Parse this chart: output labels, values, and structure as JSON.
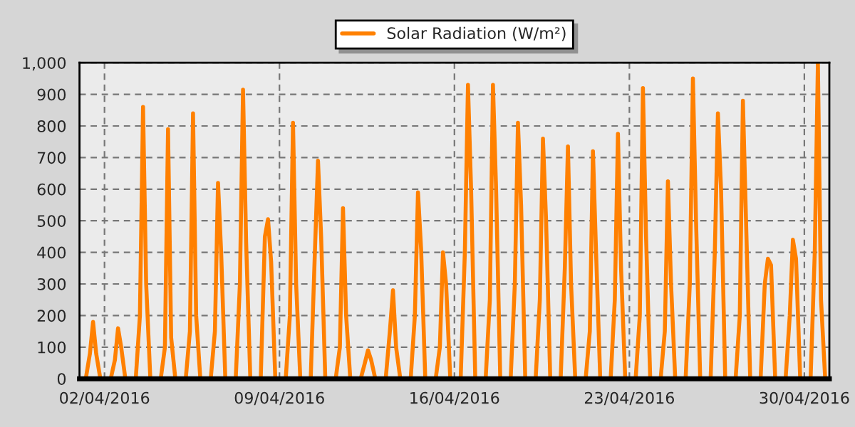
{
  "chart_data": {
    "type": "line",
    "legend": "top",
    "grid": true,
    "line_style": "solid",
    "marker": "none",
    "xlim": [
      "2016-04-01",
      "2016-05-01"
    ],
    "xticks": [
      {
        "value": "2016-04-02",
        "label": "02/04/2016"
      },
      {
        "value": "2016-04-09",
        "label": "09/04/2016"
      },
      {
        "value": "2016-04-16",
        "label": "16/04/2016"
      },
      {
        "value": "2016-04-23",
        "label": "23/04/2016"
      },
      {
        "value": "2016-04-30",
        "label": "30/04/2016"
      }
    ],
    "ylim": [
      0,
      1000
    ],
    "yticks": [
      0,
      100,
      200,
      300,
      400,
      500,
      600,
      700,
      800,
      900,
      {
        "value": 1000,
        "label": "1,000"
      }
    ],
    "series": [
      {
        "name": "Solar Radiation (W/m²)",
        "color": "#ff8000",
        "x": [
          "2016-04-01T06:00",
          "2016-04-01T10:00",
          "2016-04-01T13:00",
          "2016-04-01T16:00",
          "2016-04-01T20:00",
          "2016-04-02T06:00",
          "2016-04-02T10:00",
          "2016-04-02T13:00",
          "2016-04-02T16:00",
          "2016-04-02T20:00",
          "2016-04-03T06:00",
          "2016-04-03T10:00",
          "2016-04-03T13:00",
          "2016-04-03T16:00",
          "2016-04-03T20:00",
          "2016-04-04T06:00",
          "2016-04-04T10:00",
          "2016-04-04T13:00",
          "2016-04-04T16:00",
          "2016-04-04T20:00",
          "2016-04-05T06:00",
          "2016-04-05T10:00",
          "2016-04-05T13:00",
          "2016-04-05T16:00",
          "2016-04-05T20:00",
          "2016-04-06T06:00",
          "2016-04-06T10:00",
          "2016-04-06T13:00",
          "2016-04-06T16:00",
          "2016-04-06T20:00",
          "2016-04-07T06:00",
          "2016-04-07T10:00",
          "2016-04-07T13:00",
          "2016-04-07T16:00",
          "2016-04-07T20:00",
          "2016-04-08T06:00",
          "2016-04-08T10:00",
          "2016-04-08T13:00",
          "2016-04-08T16:00",
          "2016-04-08T20:00",
          "2016-04-09T06:00",
          "2016-04-09T10:00",
          "2016-04-09T13:00",
          "2016-04-09T16:00",
          "2016-04-09T20:00",
          "2016-04-10T06:00",
          "2016-04-10T10:00",
          "2016-04-10T13:00",
          "2016-04-10T16:00",
          "2016-04-10T20:00",
          "2016-04-11T06:00",
          "2016-04-11T10:00",
          "2016-04-11T13:00",
          "2016-04-11T16:00",
          "2016-04-11T20:00",
          "2016-04-12T06:00",
          "2016-04-12T10:00",
          "2016-04-12T13:00",
          "2016-04-12T16:00",
          "2016-04-12T20:00",
          "2016-04-13T06:00",
          "2016-04-13T10:00",
          "2016-04-13T13:00",
          "2016-04-13T16:00",
          "2016-04-13T20:00",
          "2016-04-14T06:00",
          "2016-04-14T10:00",
          "2016-04-14T13:00",
          "2016-04-14T16:00",
          "2016-04-14T20:00",
          "2016-04-15T06:00",
          "2016-04-15T10:00",
          "2016-04-15T13:00",
          "2016-04-15T16:00",
          "2016-04-15T20:00",
          "2016-04-16T06:00",
          "2016-04-16T10:00",
          "2016-04-16T13:00",
          "2016-04-16T16:00",
          "2016-04-16T20:00",
          "2016-04-17T06:00",
          "2016-04-17T10:00",
          "2016-04-17T13:00",
          "2016-04-17T16:00",
          "2016-04-17T20:00",
          "2016-04-18T06:00",
          "2016-04-18T10:00",
          "2016-04-18T13:00",
          "2016-04-18T16:00",
          "2016-04-18T20:00",
          "2016-04-19T06:00",
          "2016-04-19T10:00",
          "2016-04-19T13:00",
          "2016-04-19T16:00",
          "2016-04-19T20:00",
          "2016-04-20T06:00",
          "2016-04-20T10:00",
          "2016-04-20T13:00",
          "2016-04-20T16:00",
          "2016-04-20T20:00",
          "2016-04-21T06:00",
          "2016-04-21T10:00",
          "2016-04-21T13:00",
          "2016-04-21T16:00",
          "2016-04-21T20:00",
          "2016-04-22T06:00",
          "2016-04-22T10:00",
          "2016-04-22T13:00",
          "2016-04-22T16:00",
          "2016-04-22T20:00",
          "2016-04-23T06:00",
          "2016-04-23T10:00",
          "2016-04-23T13:00",
          "2016-04-23T16:00",
          "2016-04-23T20:00",
          "2016-04-24T06:00",
          "2016-04-24T10:00",
          "2016-04-24T13:00",
          "2016-04-24T16:00",
          "2016-04-24T20:00",
          "2016-04-25T06:00",
          "2016-04-25T10:00",
          "2016-04-25T13:00",
          "2016-04-25T16:00",
          "2016-04-25T20:00",
          "2016-04-26T06:00",
          "2016-04-26T10:00",
          "2016-04-26T13:00",
          "2016-04-26T16:00",
          "2016-04-26T20:00",
          "2016-04-27T06:00",
          "2016-04-27T10:00",
          "2016-04-27T13:00",
          "2016-04-27T16:00",
          "2016-04-27T20:00",
          "2016-04-28T06:00",
          "2016-04-28T10:00",
          "2016-04-28T13:00",
          "2016-04-28T16:00",
          "2016-04-28T20:00",
          "2016-04-29T06:00",
          "2016-04-29T10:00",
          "2016-04-29T13:00",
          "2016-04-29T16:00",
          "2016-04-29T20:00",
          "2016-04-30T06:00",
          "2016-04-30T10:00",
          "2016-04-30T13:00",
          "2016-04-30T16:00",
          "2016-04-30T20:00"
        ],
        "values": [
          0,
          80,
          180,
          80,
          0,
          0,
          60,
          160,
          100,
          0,
          0,
          200,
          860,
          300,
          0,
          0,
          100,
          790,
          130,
          0,
          0,
          150,
          840,
          200,
          0,
          0,
          150,
          620,
          400,
          0,
          0,
          300,
          915,
          430,
          0,
          0,
          450,
          505,
          370,
          0,
          0,
          200,
          810,
          300,
          0,
          0,
          400,
          690,
          450,
          0,
          0,
          100,
          540,
          200,
          0,
          0,
          50,
          90,
          60,
          0,
          0,
          150,
          280,
          100,
          0,
          0,
          200,
          590,
          410,
          0,
          0,
          100,
          400,
          300,
          0,
          0,
          400,
          930,
          600,
          0,
          0,
          250,
          930,
          600,
          0,
          0,
          300,
          810,
          550,
          0,
          0,
          250,
          760,
          500,
          0,
          0,
          350,
          735,
          300,
          0,
          0,
          150,
          720,
          400,
          0,
          0,
          250,
          775,
          350,
          0,
          0,
          200,
          920,
          450,
          0,
          0,
          150,
          625,
          300,
          0,
          0,
          300,
          950,
          500,
          0,
          0,
          400,
          840,
          600,
          0,
          0,
          200,
          880,
          500,
          0,
          0,
          300,
          380,
          360,
          0,
          0,
          200,
          440,
          380,
          0,
          0,
          400,
          1000,
          250,
          0
        ]
      }
    ]
  }
}
